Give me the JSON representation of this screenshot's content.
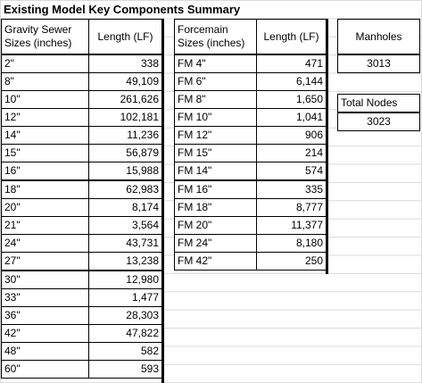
{
  "title": "Existing Model Key Components Summary",
  "gravity": {
    "header_size": "Gravity Sewer Sizes (inches)",
    "header_length": "Length (LF)",
    "rows": [
      {
        "size": "2\"",
        "length": "338"
      },
      {
        "size": "8\"",
        "length": "49,109"
      },
      {
        "size": "10\"",
        "length": "261,626"
      },
      {
        "size": "12\"",
        "length": "102,181"
      },
      {
        "size": "14\"",
        "length": "11,236"
      },
      {
        "size": "15\"",
        "length": "56,879"
      },
      {
        "size": "16\"",
        "length": "15,988"
      },
      {
        "size": "18\"",
        "length": "62,983"
      },
      {
        "size": "20\"",
        "length": "8,174"
      },
      {
        "size": "21\"",
        "length": "3,564"
      },
      {
        "size": "24\"",
        "length": "43,731"
      },
      {
        "size": "27\"",
        "length": "13,238"
      },
      {
        "size": "30\"",
        "length": "12,980"
      },
      {
        "size": "33\"",
        "length": "1,477"
      },
      {
        "size": "36\"",
        "length": "28,303"
      },
      {
        "size": "42\"",
        "length": "47,822"
      },
      {
        "size": "48\"",
        "length": "582"
      },
      {
        "size": "60\"",
        "length": "593"
      }
    ]
  },
  "forcemain": {
    "header_size": "Forcemain Sizes (inches)",
    "header_length": "Length (LF)",
    "rows": [
      {
        "size": "FM 4\"",
        "length": "471"
      },
      {
        "size": "FM 6\"",
        "length": "6,144"
      },
      {
        "size": "FM 8\"",
        "length": "1,650"
      },
      {
        "size": "FM 10\"",
        "length": "1,041"
      },
      {
        "size": "FM 12\"",
        "length": "906"
      },
      {
        "size": "FM 15\"",
        "length": "214"
      },
      {
        "size": "FM 14\"",
        "length": "574"
      },
      {
        "size": "FM 16\"",
        "length": "335"
      },
      {
        "size": "FM 18\"",
        "length": "8,777"
      },
      {
        "size": "FM 20\"",
        "length": "11,377"
      },
      {
        "size": "FM 24\"",
        "length": "8,180"
      },
      {
        "size": "FM 42\"",
        "length": "250"
      }
    ]
  },
  "manholes": {
    "label": "Manholes",
    "value": "3013"
  },
  "total_nodes": {
    "label": "Total Nodes",
    "value": "3023"
  }
}
